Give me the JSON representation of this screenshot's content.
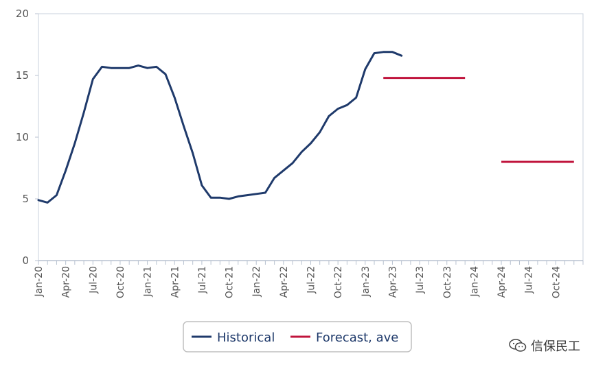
{
  "chart_data": {
    "type": "line",
    "title": "",
    "xlabel": "",
    "ylabel": "",
    "ylim": [
      0,
      20
    ],
    "yticks": [
      0,
      5,
      10,
      15,
      20
    ],
    "x_tick_labels": [
      "Jan-20",
      "Apr-20",
      "Jul-20",
      "Oct-20",
      "Jan-21",
      "Apr-21",
      "Jul-21",
      "Oct-21",
      "Jan-22",
      "Apr-22",
      "Jul-22",
      "Oct-22",
      "Jan-23",
      "Apr-23",
      "Jul-23",
      "Oct-23",
      "Jan-24",
      "Apr-24",
      "Jul-24",
      "Oct-24"
    ],
    "x_months": 60,
    "grid": false,
    "legend_position": "bottom-center",
    "series": [
      {
        "name": "Historical",
        "color": "#1f3a6b",
        "x": [
          "2020-01",
          "2020-02",
          "2020-03",
          "2020-04",
          "2020-05",
          "2020-06",
          "2020-07",
          "2020-08",
          "2020-09",
          "2020-10",
          "2020-11",
          "2020-12",
          "2021-01",
          "2021-02",
          "2021-03",
          "2021-04",
          "2021-05",
          "2021-06",
          "2021-07",
          "2021-08",
          "2021-09",
          "2021-10",
          "2021-11",
          "2021-12",
          "2022-01",
          "2022-02",
          "2022-03",
          "2022-04",
          "2022-05",
          "2022-06",
          "2022-07",
          "2022-08",
          "2022-09",
          "2022-10",
          "2022-11",
          "2022-12",
          "2023-01",
          "2023-02",
          "2023-03",
          "2023-04",
          "2023-05",
          "2023-06"
        ],
        "values": [
          4.9,
          4.7,
          5.3,
          7.3,
          9.5,
          12.0,
          14.7,
          15.7,
          15.6,
          15.6,
          15.6,
          15.8,
          15.6,
          15.7,
          15.1,
          13.2,
          10.9,
          8.7,
          6.1,
          5.1,
          5.1,
          5.0,
          5.2,
          5.3,
          5.4,
          5.5,
          6.7,
          7.3,
          7.9,
          8.8,
          9.5,
          10.4,
          11.7,
          12.3,
          12.6,
          13.2,
          15.5,
          16.8,
          16.9,
          16.9,
          16.6,
          null
        ]
      },
      {
        "name": "Forecast, ave",
        "color": "#c0143c",
        "segments": [
          {
            "x_start": "2023-03",
            "x_end": "2023-12",
            "value": 14.8
          },
          {
            "x_start": "2024-04",
            "x_end": "2024-12",
            "value": 8.0
          }
        ]
      }
    ]
  },
  "legend": {
    "historical_label": "Historical",
    "forecast_label": "Forecast, ave"
  },
  "watermark": {
    "text": "信保民工"
  }
}
